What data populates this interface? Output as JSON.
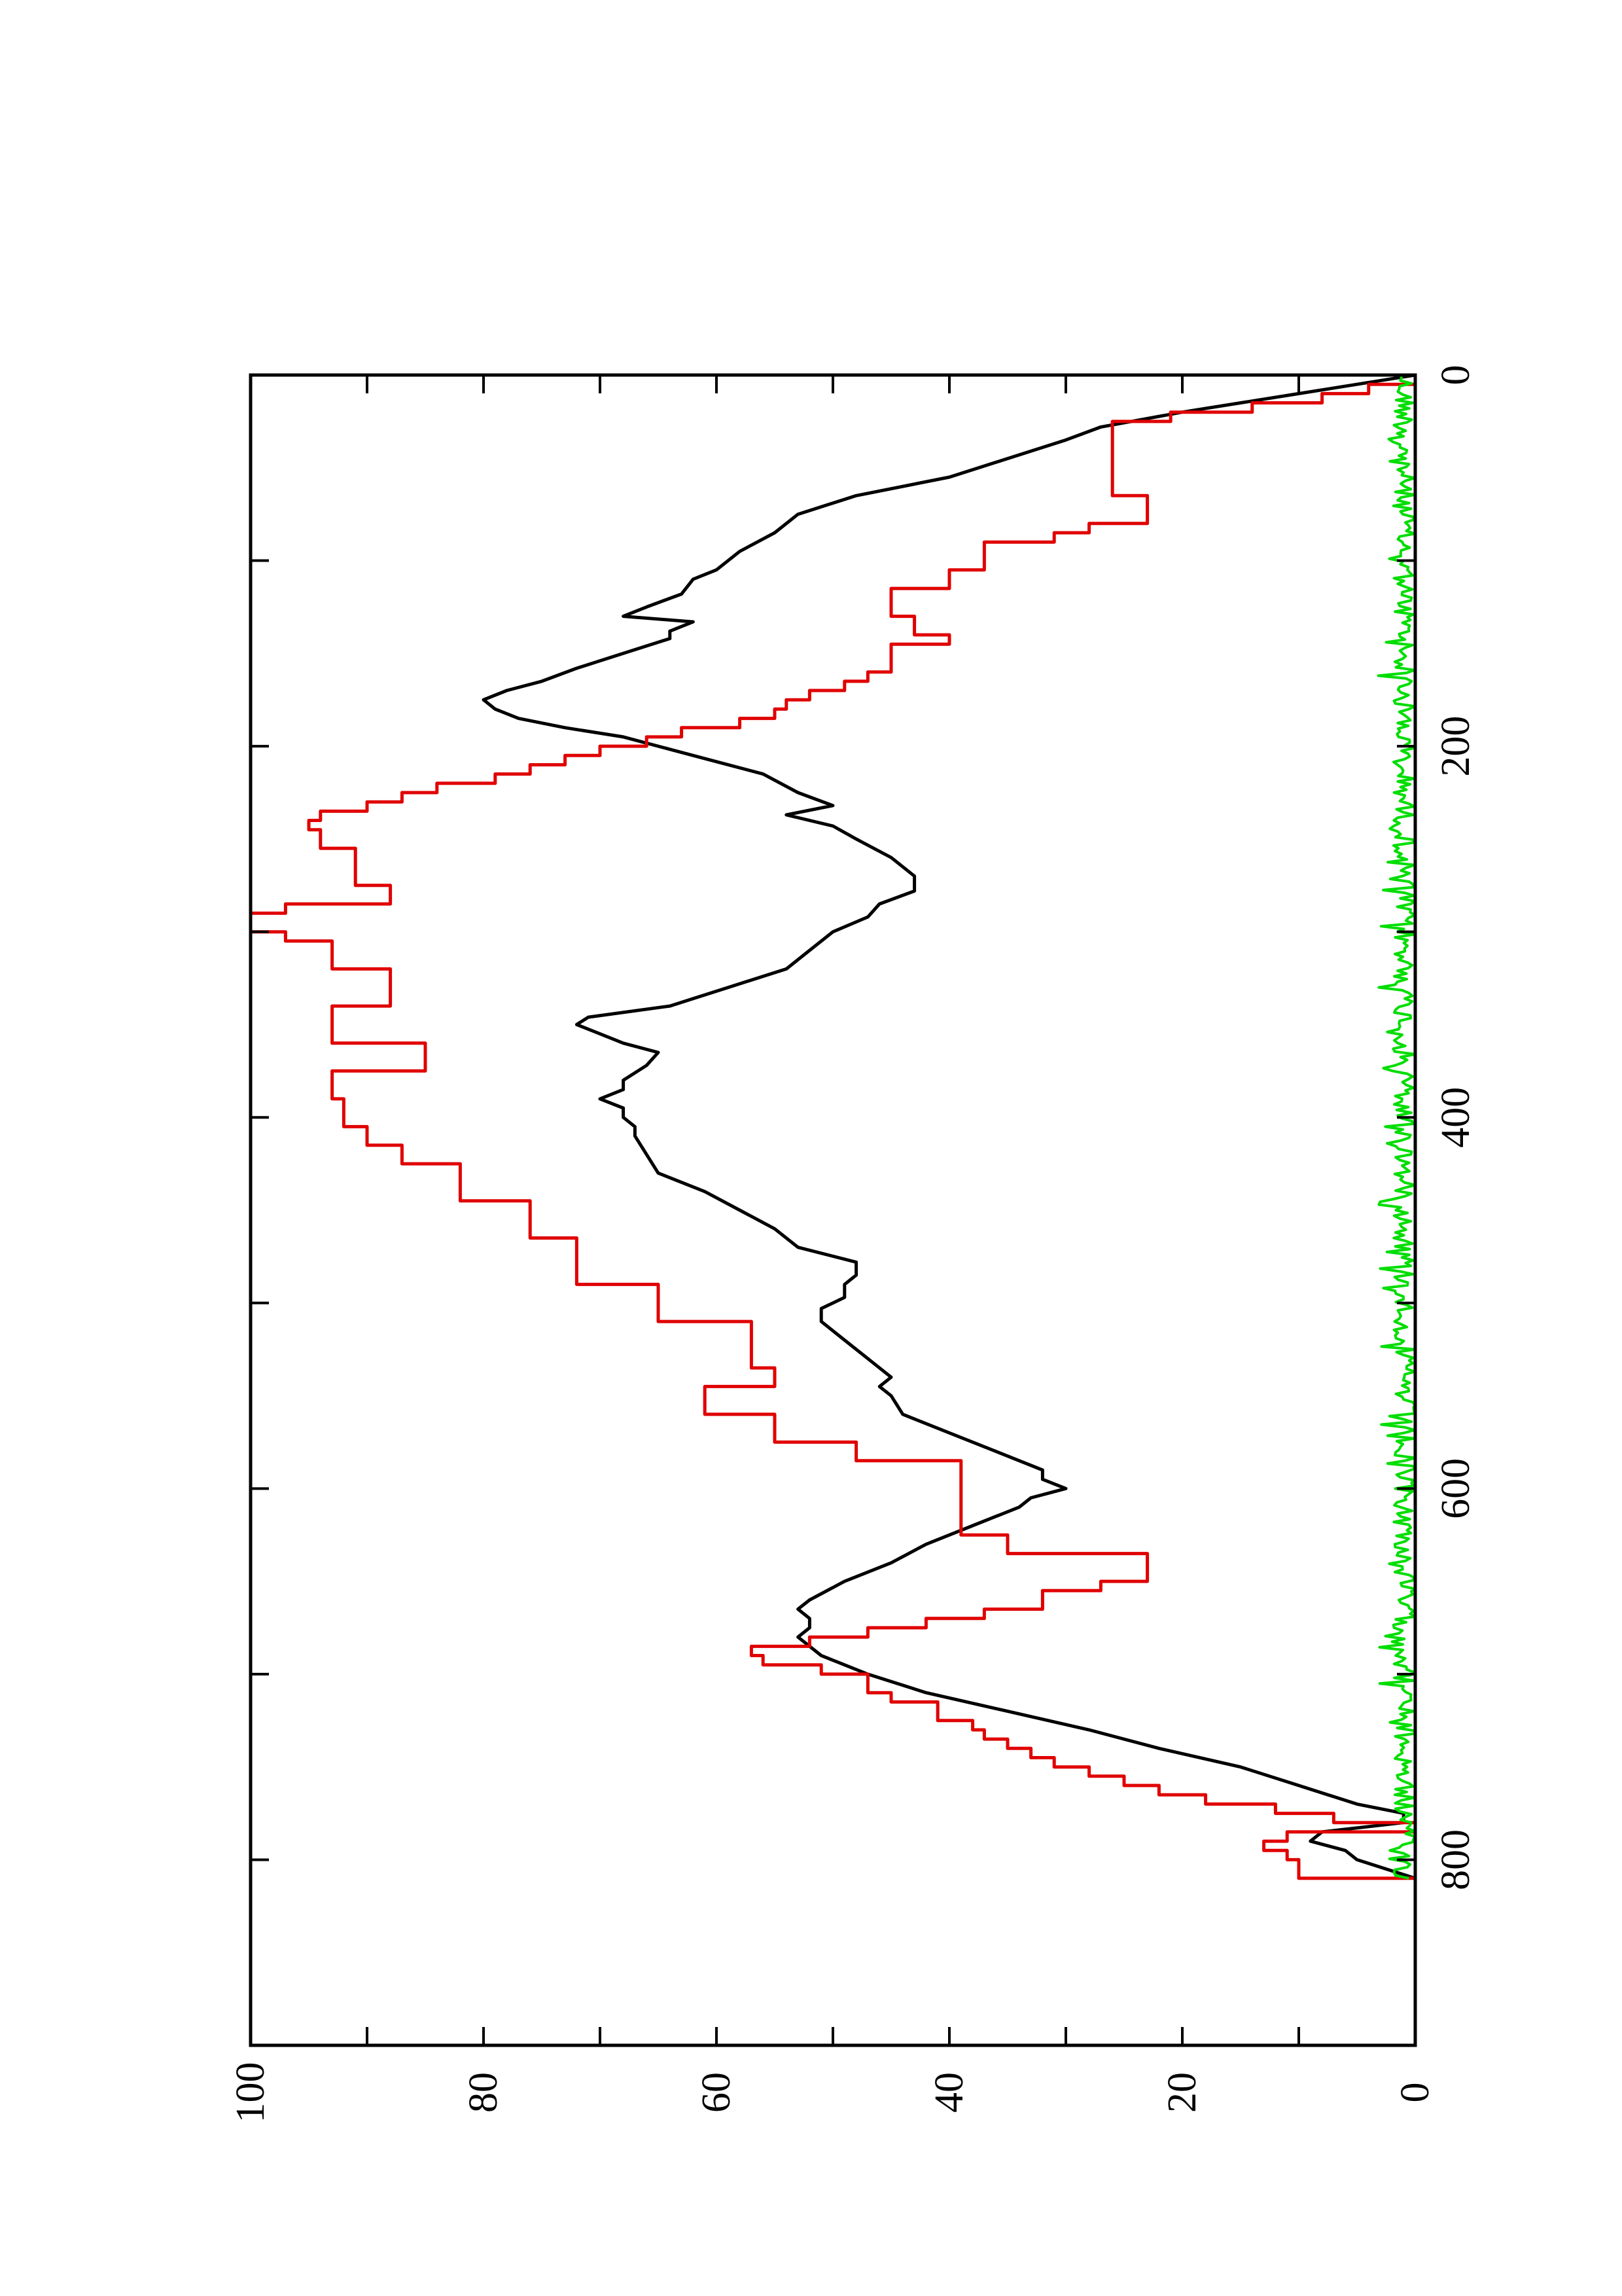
{
  "chart_data": {
    "type": "line",
    "title": "",
    "xlabel": "",
    "ylabel": "",
    "orientation": "rotated 90 degrees counter-clockwise (page landscape)",
    "xlim": [
      0,
      900
    ],
    "ylim": [
      0,
      100
    ],
    "grid": false,
    "legend": "none",
    "x_ticks": [
      0,
      200,
      400,
      600,
      800
    ],
    "x_tick_labels": [
      "0",
      "200",
      "400",
      "600",
      "800"
    ],
    "x_minor_ticks": [
      100,
      300,
      500,
      700
    ],
    "y_ticks": [
      0,
      20,
      40,
      60,
      80,
      100
    ],
    "y_tick_labels": [
      "0",
      "20",
      "40",
      "60",
      "80",
      "100"
    ],
    "y_minor_ticks": [
      10,
      30,
      50,
      70,
      90
    ],
    "series": [
      {
        "color": "#000000",
        "step": false,
        "x": [
          0,
          10,
          20,
          28,
          35,
          45,
          55,
          65,
          75,
          85,
          95,
          105,
          110,
          118,
          125,
          130,
          133,
          138,
          142,
          150,
          158,
          165,
          170,
          175,
          180,
          185,
          190,
          195,
          205,
          215,
          225,
          232,
          237,
          243,
          250,
          260,
          270,
          278,
          285,
          292,
          300,
          310,
          320,
          330,
          340,
          346,
          350,
          355,
          360,
          365,
          372,
          380,
          385,
          390,
          395,
          400,
          405,
          410,
          420,
          430,
          440,
          450,
          460,
          470,
          478,
          485,
          490,
          497,
          503,
          510,
          520,
          530,
          540,
          545,
          550,
          560,
          570,
          580,
          590,
          595,
          600,
          605,
          610,
          620,
          630,
          640,
          650,
          660,
          665,
          670,
          675,
          680,
          690,
          700,
          710,
          720,
          730,
          740,
          750,
          760,
          770,
          775,
          780,
          785,
          790,
          795,
          800,
          810
        ],
        "y": [
          0,
          10,
          20,
          27,
          30,
          35,
          40,
          48,
          53,
          55,
          58,
          60,
          62,
          63,
          66,
          68,
          62,
          64,
          64,
          68,
          72,
          75,
          78,
          80,
          79,
          77,
          73,
          68,
          62,
          56,
          53,
          50,
          54,
          50,
          48,
          45,
          43,
          43,
          46,
          47,
          50,
          52,
          54,
          59,
          64,
          71,
          72,
          70,
          68,
          65,
          66,
          68,
          68,
          70,
          68,
          68,
          67,
          67,
          66,
          65,
          61,
          58,
          55,
          53,
          48,
          48,
          49,
          49,
          51,
          51,
          49,
          47,
          45,
          46,
          45,
          44,
          40,
          36,
          32,
          32,
          30,
          33,
          34,
          38,
          42,
          45,
          49,
          52,
          53,
          52,
          52,
          53,
          51,
          47,
          42,
          35,
          28,
          22,
          15,
          10,
          5,
          1,
          1,
          8,
          9,
          6,
          5,
          0
        ]
      },
      {
        "color": "#e00000",
        "step": true,
        "x": [
          0,
          5,
          10,
          15,
          20,
          25,
          30,
          35,
          40,
          45,
          50,
          55,
          60,
          65,
          70,
          75,
          80,
          85,
          90,
          100,
          105,
          110,
          115,
          120,
          125,
          130,
          135,
          140,
          145,
          150,
          155,
          160,
          165,
          170,
          175,
          180,
          185,
          190,
          195,
          200,
          205,
          210,
          215,
          220,
          225,
          230,
          235,
          240,
          245,
          250,
          255,
          260,
          265,
          270,
          275,
          280,
          285,
          290,
          295,
          300,
          305,
          310,
          315,
          320,
          325,
          330,
          335,
          340,
          345,
          350,
          355,
          360,
          365,
          370,
          375,
          380,
          385,
          390,
          395,
          400,
          405,
          410,
          415,
          420,
          425,
          430,
          435,
          440,
          445,
          450,
          455,
          460,
          465,
          470,
          475,
          480,
          485,
          490,
          495,
          500,
          505,
          510,
          515,
          520,
          525,
          530,
          535,
          540,
          545,
          550,
          555,
          560,
          565,
          570,
          575,
          580,
          585,
          590,
          595,
          600,
          605,
          610,
          615,
          620,
          625,
          630,
          635,
          640,
          645,
          650,
          655,
          660,
          665,
          670,
          675,
          680,
          685,
          690,
          695,
          700,
          705,
          710,
          715,
          720,
          725,
          730,
          735,
          740,
          745,
          750,
          755,
          760,
          765,
          770,
          775,
          780,
          785,
          790,
          795,
          800,
          805,
          810
        ],
        "y": [
          0,
          4,
          8,
          14,
          21,
          26,
          26,
          26,
          26,
          26,
          26,
          26,
          26,
          23,
          23,
          23,
          28,
          31,
          37,
          37,
          40,
          40,
          45,
          45,
          45,
          43,
          43,
          40,
          45,
          45,
          45,
          47,
          49,
          52,
          54,
          55,
          58,
          63,
          66,
          70,
          73,
          76,
          79,
          84,
          87,
          90,
          94,
          95,
          94,
          94,
          91,
          91,
          91,
          91,
          88,
          88,
          97,
          100,
          100,
          97,
          93,
          93,
          93,
          88,
          88,
          88,
          88,
          93,
          93,
          93,
          93,
          85,
          85,
          85,
          93,
          93,
          93,
          92,
          92,
          92,
          90,
          90,
          87,
          87,
          82,
          82,
          82,
          82,
          76,
          76,
          76,
          76,
          72,
          72,
          72,
          72,
          72,
          65,
          65,
          65,
          65,
          57,
          57,
          57,
          57,
          57,
          55,
          55,
          61,
          61,
          61,
          55,
          55,
          55,
          48,
          48,
          39,
          39,
          39,
          39,
          39,
          39,
          39,
          39,
          35,
          35,
          23,
          23,
          23,
          27,
          32,
          32,
          37,
          42,
          47,
          52,
          57,
          56,
          51,
          47,
          47,
          45,
          41,
          41,
          38,
          37,
          35,
          33,
          31,
          28,
          25,
          22,
          18,
          12,
          7,
          0,
          11,
          13,
          11,
          10,
          10,
          0
        ]
      },
      {
        "color": "#00dd00",
        "step": false,
        "note": "noisy trace near zero",
        "y_range": [
          0,
          2.5
        ],
        "x_range": [
          0,
          810
        ]
      }
    ]
  }
}
